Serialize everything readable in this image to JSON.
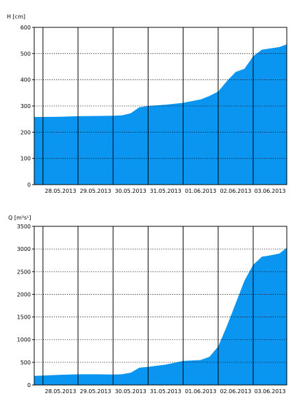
{
  "chart_data": [
    {
      "type": "area",
      "ylabel": "H [cm]",
      "ylim": [
        0,
        600
      ],
      "yticks": [
        0,
        100,
        200,
        300,
        400,
        500,
        600
      ],
      "xlim": [
        "2013-05-27T18:00",
        "2013-06-03T23:00"
      ],
      "categories": [
        "28.05.2013",
        "29.05.2013",
        "30.05.2013",
        "31.05.2013",
        "01.06.2013",
        "02.06.2013",
        "03.06.2013"
      ],
      "grid": "dotted horizontal, solid vertical at midnight",
      "color": "#0a96f0",
      "series": [
        {
          "x": [
            "2013-05-27T18:00",
            "2013-05-28T12:00",
            "2013-05-29T00:00",
            "2013-05-29T12:00",
            "2013-05-30T00:00",
            "2013-05-30T06:00",
            "2013-05-30T12:00",
            "2013-05-30T18:00",
            "2013-05-31T00:00",
            "2013-05-31T12:00",
            "2013-06-01T00:00",
            "2013-06-01T12:00",
            "2013-06-01T18:00",
            "2013-06-02T00:00",
            "2013-06-02T06:00",
            "2013-06-02T12:00",
            "2013-06-02T18:00",
            "2013-06-03T00:00",
            "2013-06-03T06:00",
            "2013-06-03T12:00",
            "2013-06-03T18:00",
            "2013-06-03T23:00"
          ],
          "values": [
            258,
            259,
            261,
            262,
            263,
            264,
            272,
            295,
            300,
            305,
            312,
            325,
            338,
            355,
            395,
            430,
            442,
            490,
            515,
            520,
            525,
            535
          ]
        }
      ]
    },
    {
      "type": "area",
      "ylabel": "Q [m³s¹]",
      "ylim": [
        0,
        3500
      ],
      "yticks": [
        0,
        500,
        1000,
        1500,
        2000,
        2500,
        3000,
        3500
      ],
      "xlim": [
        "2013-05-27T18:00",
        "2013-06-03T23:00"
      ],
      "categories": [
        "28.05.2013",
        "29.05.2013",
        "30.05.2013",
        "31.05.2013",
        "01.06.2013",
        "02.06.2013",
        "03.06.2013"
      ],
      "grid": "dotted horizontal, solid vertical at midnight",
      "color": "#0a96f0",
      "series": [
        {
          "x": [
            "2013-05-27T18:00",
            "2013-05-28T12:00",
            "2013-05-29T00:00",
            "2013-05-29T12:00",
            "2013-05-30T00:00",
            "2013-05-30T06:00",
            "2013-05-30T12:00",
            "2013-05-30T18:00",
            "2013-05-31T00:00",
            "2013-05-31T12:00",
            "2013-06-01T00:00",
            "2013-06-01T12:00",
            "2013-06-01T18:00",
            "2013-06-02T00:00",
            "2013-06-02T06:00",
            "2013-06-02T12:00",
            "2013-06-02T18:00",
            "2013-06-03T00:00",
            "2013-06-03T06:00",
            "2013-06-03T12:00",
            "2013-06-03T18:00",
            "2013-06-03T23:00"
          ],
          "values": [
            200,
            225,
            235,
            235,
            230,
            235,
            270,
            380,
            400,
            450,
            530,
            550,
            620,
            850,
            1300,
            1800,
            2300,
            2650,
            2830,
            2860,
            2900,
            3030
          ]
        }
      ]
    }
  ]
}
